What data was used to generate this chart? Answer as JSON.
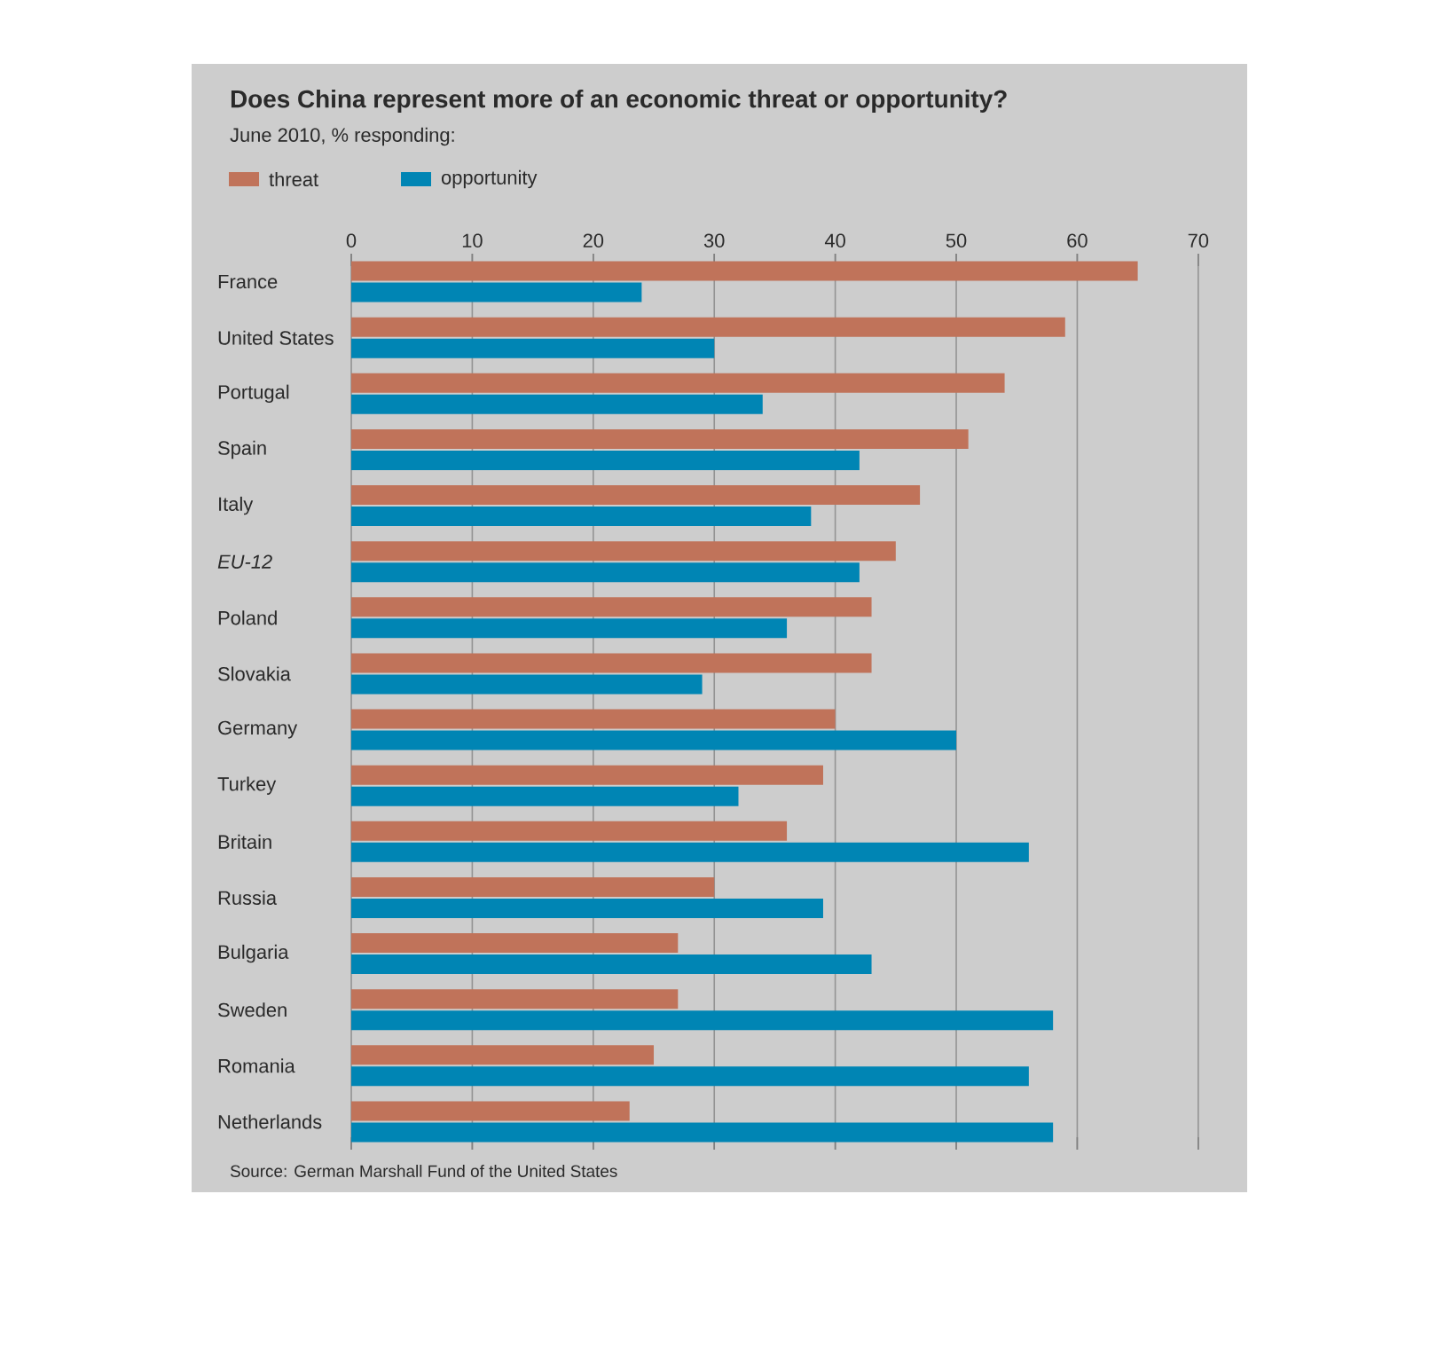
{
  "chart_data": {
    "type": "bar",
    "orientation": "horizontal",
    "title": "Does China represent more of an economic threat or opportunity?",
    "subtitle": "June 2010, % responding:",
    "categories": [
      "France",
      "United States",
      "Portugal",
      "Spain",
      "Italy",
      "*EU-12*",
      "Poland",
      "Slovakia",
      "Germany",
      "Turkey",
      "Britain",
      "Russia",
      "Bulgaria",
      "Sweden",
      "Romania",
      "Netherlands"
    ],
    "series": [
      {
        "name": "threat",
        "color": "#c0735a",
        "values": [
          65,
          59,
          54,
          51,
          47,
          45,
          43,
          43,
          40,
          39,
          36,
          30,
          27,
          27,
          25,
          23
        ]
      },
      {
        "name": "opportunity",
        "color": "#0085b4",
        "values": [
          24,
          30,
          34,
          42,
          38,
          42,
          36,
          29,
          50,
          32,
          56,
          39,
          43,
          58,
          56,
          58
        ]
      }
    ],
    "xlim": [
      0,
      70
    ],
    "xticks": [
      0,
      10,
      20,
      30,
      40,
      50,
      60,
      70
    ],
    "grid": "x",
    "legend": "top left",
    "annotations": [
      "Source: German Marshall Fund of the United States"
    ]
  }
}
